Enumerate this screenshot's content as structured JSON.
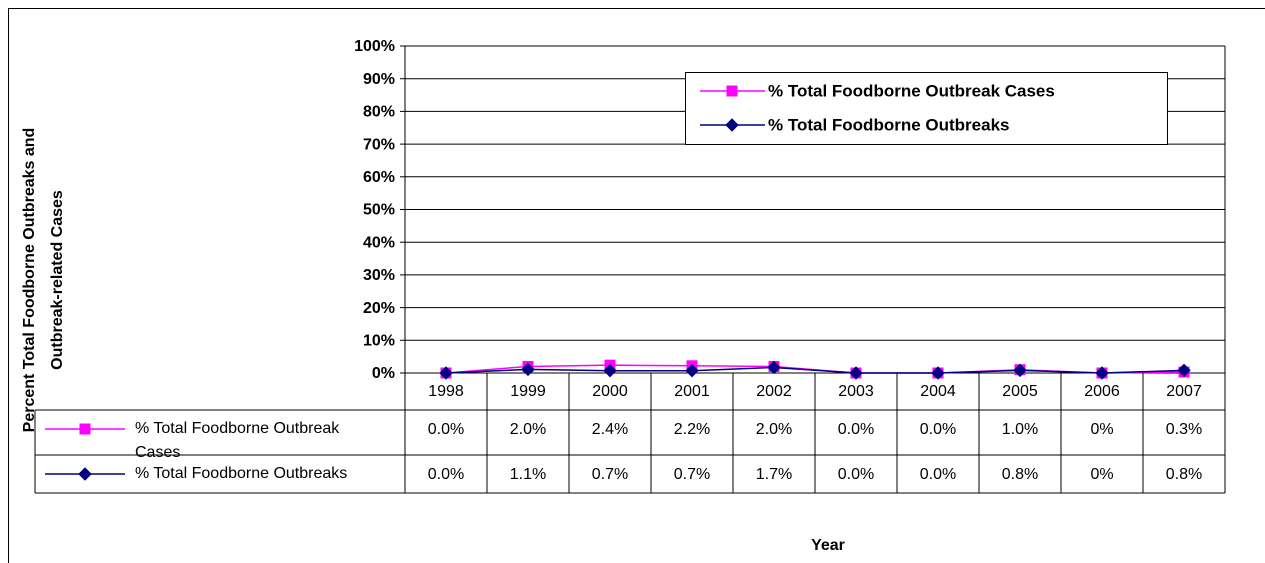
{
  "chart_data": {
    "type": "line",
    "ylabel": [
      "Percent Total Foodborne Outbreaks and",
      "Outbreak-related Cases"
    ],
    "xlabel": "Year",
    "categories": [
      "1998",
      "1999",
      "2000",
      "2001",
      "2002",
      "2003",
      "2004",
      "2005",
      "2006",
      "2007"
    ],
    "series": [
      {
        "name": "% Total Foodborne Outbreak Cases",
        "color": "#ff00ff",
        "marker": "square",
        "values": [
          0.0,
          2.0,
          2.4,
          2.2,
          2.0,
          0.0,
          0.0,
          1.0,
          0,
          0.3
        ],
        "value_labels": [
          "0.0%",
          "2.0%",
          "2.4%",
          "2.2%",
          "2.0%",
          "0.0%",
          "0.0%",
          "1.0%",
          "0%",
          "0.3%"
        ]
      },
      {
        "name": "% Total Foodborne Outbreaks",
        "color": "#000080",
        "marker": "diamond",
        "values": [
          0.0,
          1.1,
          0.7,
          0.7,
          1.7,
          0.0,
          0.0,
          0.8,
          0,
          0.8
        ],
        "value_labels": [
          "0.0%",
          "1.1%",
          "0.7%",
          "0.7%",
          "1.7%",
          "0.0%",
          "0.0%",
          "0.8%",
          "0%",
          "0.8%"
        ]
      }
    ],
    "ylim": [
      0,
      100
    ],
    "yticks": [
      {
        "value": 0,
        "label": "0%"
      },
      {
        "value": 10,
        "label": "10%"
      },
      {
        "value": 20,
        "label": "20%"
      },
      {
        "value": 30,
        "label": "30%"
      },
      {
        "value": 40,
        "label": "40%"
      },
      {
        "value": 50,
        "label": "50%"
      },
      {
        "value": 60,
        "label": "60%"
      },
      {
        "value": 70,
        "label": "70%"
      },
      {
        "value": 80,
        "label": "80%"
      },
      {
        "value": 90,
        "label": "90%"
      },
      {
        "value": 100,
        "label": "100%"
      }
    ],
    "grid": true,
    "legend": "top-right"
  }
}
